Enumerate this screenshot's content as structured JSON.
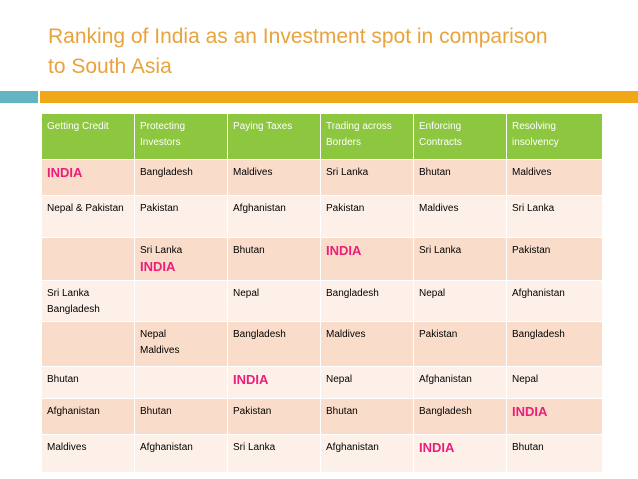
{
  "title": {
    "line1": "Ranking of India as an Investment spot in comparison",
    "line2": "to South Asia"
  },
  "colors": {
    "title": "#e8a33c",
    "header_bg": "#8dc63f",
    "row_dark": "#fadcca",
    "row_light": "#fdf0e8",
    "india_highlight": "#ec1e79",
    "accent_bar": "#f0a818",
    "side_bar": "#63b5c4"
  },
  "table": {
    "headers": [
      "Getting Credit",
      "Protecting Investors",
      "Paying Taxes",
      "Trading across Borders",
      "Enforcing Contracts",
      "Resolving insolvency"
    ],
    "rows": [
      [
        "INDIA",
        "Bangladesh",
        "Maldives",
        "Sri Lanka",
        "Bhutan",
        "Maldives"
      ],
      [
        "Nepal & Pakistan",
        "Pakistan",
        "Afghanistan",
        "Pakistan",
        "Maldives",
        "Sri Lanka"
      ],
      [
        "",
        "Sri Lanka",
        "Bhutan",
        "INDIA",
        "Sri Lanka",
        "Pakistan"
      ],
      [
        "Sri Lanka",
        "",
        "Nepal",
        "Bangladesh",
        "Nepal",
        "Afghanistan"
      ],
      [
        "",
        "Nepal",
        "Bangladesh",
        "Maldives",
        "Pakistan",
        "Bangladesh"
      ],
      [
        "Bhutan",
        "",
        "INDIA",
        "Nepal",
        "Afghanistan",
        "Nepal"
      ],
      [
        "Afghanistan",
        "Bhutan",
        "Pakistan",
        "Bhutan",
        "Bangladesh",
        "INDIA"
      ],
      [
        "Maldives",
        "Afghanistan",
        "Sri Lanka",
        "Afghanistan",
        "INDIA",
        "Bhutan"
      ]
    ],
    "extra_lines": {
      "r3c2": "INDIA",
      "r4c1": "Bangladesh",
      "r5c2": "Maldives"
    }
  }
}
